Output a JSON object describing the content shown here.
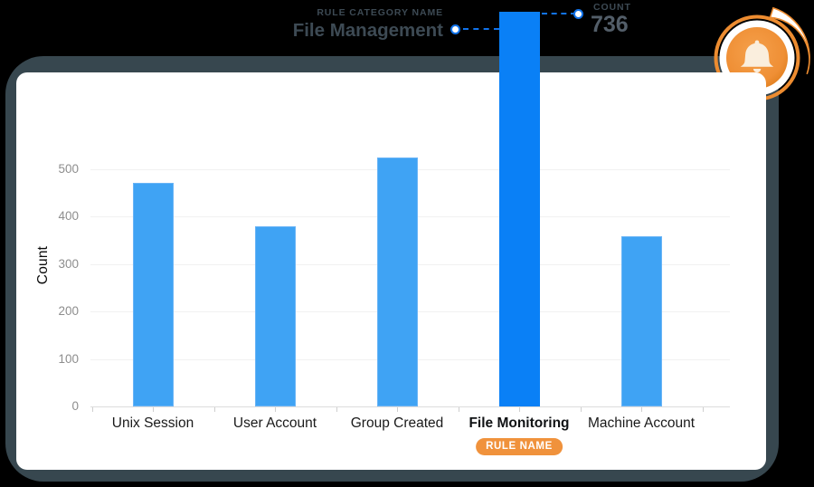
{
  "background": {
    "outer": "#000000",
    "frame": "#37474f",
    "card": "#ffffff"
  },
  "annotations": {
    "category": {
      "label": "RULE CATEGORY NAME",
      "value": "File Management"
    },
    "count": {
      "label": "COUNT",
      "value": "736"
    },
    "rule_badge": {
      "label": "RULE NAME",
      "bg": "#f0923c"
    }
  },
  "icon": {
    "name": "notification-bell",
    "orange": "#ed8c30",
    "orange_deep": "#e07f1f",
    "bell_fill": "#faeedd"
  },
  "chart_data": {
    "type": "bar",
    "title": "",
    "categories": [
      "Unix Session",
      "User Account",
      "Group Created",
      "File Monitoring",
      "Machine Account"
    ],
    "values": [
      470,
      380,
      524,
      736,
      358
    ],
    "highlight_index": 3,
    "highlighted_category": "File Monitoring",
    "highlighted_value": 736,
    "xlabel": "",
    "ylabel": "Count",
    "y_ticks": [
      0,
      100,
      200,
      300,
      400,
      500
    ],
    "ylim": [
      0,
      560
    ],
    "grid": true,
    "legend": false,
    "bar_color": "#3fa3f4",
    "highlight_bar_color": "#0a80f6",
    "callout_color": "#1273ea",
    "badge_color": "#f0923c"
  }
}
